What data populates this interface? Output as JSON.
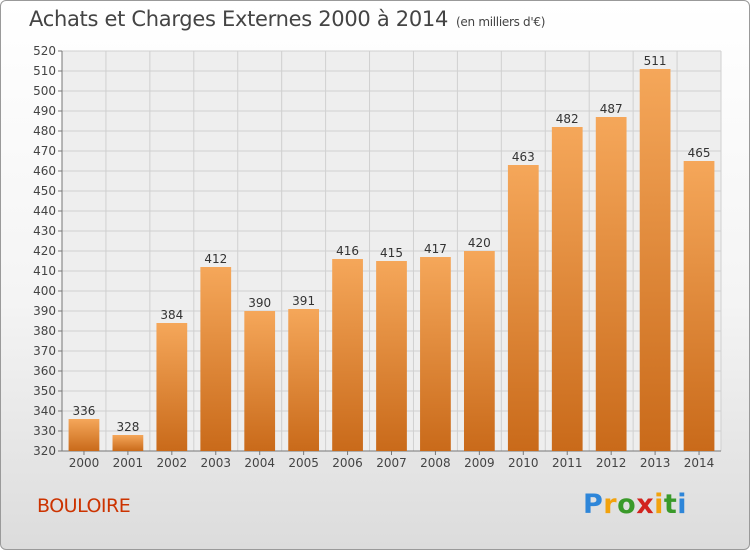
{
  "title": "Achats et Charges Externes 2000 à 2014",
  "unit_label": "(en milliers d'€)",
  "commune": "BOULOIRE",
  "logo": {
    "letters": [
      "P",
      "r",
      "o",
      "x",
      "i",
      "t",
      "i"
    ],
    "colors": [
      "#2e86d9",
      "#f2a20d",
      "#3a9a2a",
      "#d2231e",
      "#f2a20d",
      "#3a9a2a",
      "#2e86d9"
    ]
  },
  "colors": {
    "bar_light": "#f5a75a",
    "bar_dark": "#c96a1a",
    "title": "#444444",
    "commune": "#cc3300"
  },
  "chart_data": {
    "type": "bar",
    "categories": [
      "2000",
      "2001",
      "2002",
      "2003",
      "2004",
      "2005",
      "2006",
      "2007",
      "2008",
      "2009",
      "2010",
      "2011",
      "2012",
      "2013",
      "2014"
    ],
    "values": [
      336,
      328,
      384,
      412,
      390,
      391,
      416,
      415,
      417,
      420,
      463,
      482,
      487,
      511,
      465
    ],
    "title": "Achats et Charges Externes 2000 à 2014",
    "ylim": [
      320,
      520
    ],
    "yticks": [
      320,
      330,
      340,
      350,
      360,
      370,
      380,
      390,
      400,
      410,
      420,
      430,
      440,
      450,
      460,
      470,
      480,
      490,
      500,
      510,
      520
    ],
    "grid": true,
    "data_labels": true
  }
}
